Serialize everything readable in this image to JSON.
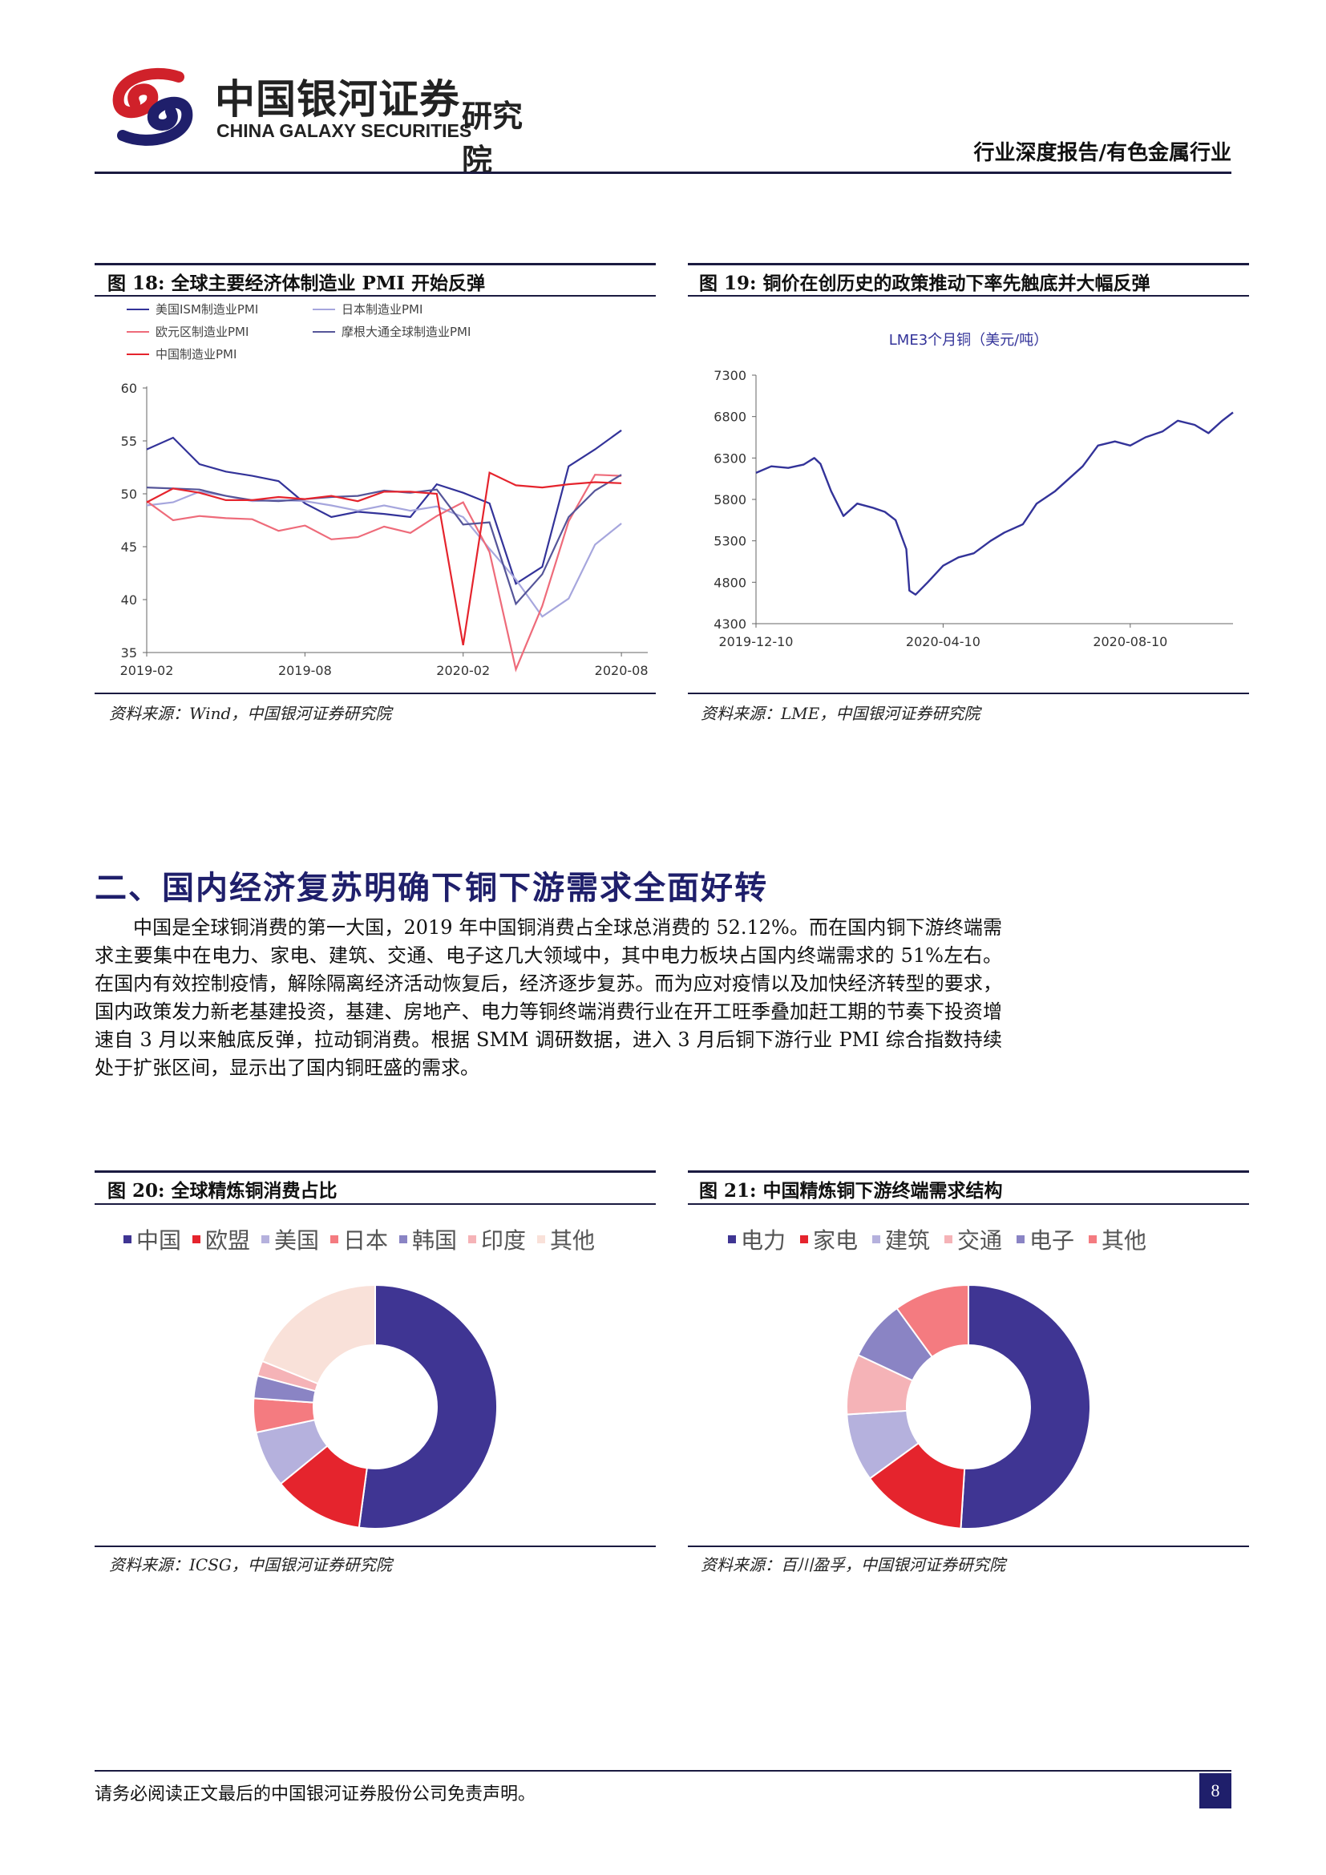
{
  "header": {
    "logo_cn": "中国银河证券",
    "logo_en": "CHINA GALAXY SECURITIES",
    "logo_dept": "研究院",
    "right_label": "行业深度报告/有色金属行业",
    "logo_colors": {
      "red": "#d0212a",
      "navy": "#1f1f6b"
    }
  },
  "figures": {
    "fig18": {
      "title": "图 18:  全球主要经济体制造业 PMI 开始反弹",
      "source": "资料来源：Wind，中国银河证券研究院",
      "chart_data": {
        "type": "line",
        "x_ticks": [
          "2019-02",
          "2019-08",
          "2020-02",
          "2020-08"
        ],
        "ylim": [
          35,
          60
        ],
        "y_ticks": [
          "35",
          "40",
          "45",
          "50",
          "55",
          "60"
        ],
        "x": [
          "2019-02",
          "2019-03",
          "2019-04",
          "2019-05",
          "2019-06",
          "2019-07",
          "2019-08",
          "2019-09",
          "2019-10",
          "2019-11",
          "2019-12",
          "2020-01",
          "2020-02",
          "2020-03",
          "2020-04",
          "2020-05",
          "2020-06",
          "2020-07",
          "2020-08",
          "2020-09"
        ],
        "series": [
          {
            "name": "美国ISM制造业PMI",
            "color": "#333399",
            "values": [
              54.2,
              55.3,
              52.8,
              52.1,
              51.7,
              51.2,
              49.1,
              47.8,
              48.3,
              48.1,
              47.8,
              50.9,
              50.1,
              49.1,
              41.5,
              43.1,
              52.6,
              54.2,
              56.0,
              null
            ]
          },
          {
            "name": "日本制造业PMI",
            "color": "#a6a6dd",
            "values": [
              48.9,
              49.2,
              50.2,
              49.8,
              49.3,
              49.4,
              49.3,
              48.9,
              48.4,
              48.9,
              48.4,
              48.8,
              47.8,
              44.8,
              41.9,
              38.4,
              40.1,
              45.2,
              47.2,
              null
            ]
          },
          {
            "name": "欧元区制造业PMI",
            "color": "#ee6b7a",
            "values": [
              49.3,
              47.5,
              47.9,
              47.7,
              47.6,
              46.5,
              47.0,
              45.7,
              45.9,
              46.9,
              46.3,
              47.9,
              49.2,
              44.5,
              33.4,
              39.4,
              47.4,
              51.8,
              51.7,
              null
            ]
          },
          {
            "name": "摩根大通全球制造业PMI",
            "color": "#555599",
            "values": [
              50.6,
              50.5,
              50.4,
              49.8,
              49.4,
              49.3,
              49.5,
              49.7,
              49.8,
              50.3,
              50.1,
              50.4,
              47.1,
              47.3,
              39.6,
              42.4,
              47.8,
              50.3,
              51.8,
              null
            ]
          },
          {
            "name": "中国制造业PMI",
            "color": "#e5242d",
            "values": [
              49.2,
              50.5,
              50.1,
              49.4,
              49.4,
              49.7,
              49.5,
              49.8,
              49.3,
              50.2,
              50.2,
              50.0,
              35.7,
              52.0,
              50.8,
              50.6,
              50.9,
              51.1,
              51.0,
              null
            ]
          }
        ],
        "legend_position": "top",
        "grid": false
      }
    },
    "fig19": {
      "title": "图 19:  铜价在创历史的政策推动下率先触底并大幅反弹",
      "source": "资料来源：LME，中国银河证券研究院",
      "chart_data": {
        "type": "line",
        "title": "LME3个月铜（美元/吨）",
        "x_ticks": [
          "2019-12-10",
          "2020-04-10",
          "2020-08-10"
        ],
        "ylim": [
          4300,
          7300
        ],
        "y_ticks": [
          "4300",
          "4800",
          "5300",
          "5800",
          "6300",
          "6800",
          "7300"
        ],
        "x": [
          "2019-12-10",
          "2019-12-20",
          "2019-12-31",
          "2020-01-10",
          "2020-01-17",
          "2020-01-21",
          "2020-01-28",
          "2020-02-05",
          "2020-02-14",
          "2020-02-24",
          "2020-03-03",
          "2020-03-10",
          "2020-03-17",
          "2020-03-19",
          "2020-03-23",
          "2020-03-31",
          "2020-04-10",
          "2020-04-20",
          "2020-04-30",
          "2020-05-11",
          "2020-05-20",
          "2020-06-01",
          "2020-06-10",
          "2020-06-22",
          "2020-07-01",
          "2020-07-10",
          "2020-07-20",
          "2020-07-31",
          "2020-08-10",
          "2020-08-20",
          "2020-08-31",
          "2020-09-10",
          "2020-09-21",
          "2020-09-30",
          "2020-10-09",
          "2020-10-16"
        ],
        "series": [
          {
            "name": "LME3个月铜（美元/吨）",
            "color": "#333399",
            "values": [
              6120,
              6200,
              6180,
              6220,
              6300,
              6230,
              5900,
              5600,
              5750,
              5700,
              5650,
              5550,
              5200,
              4700,
              4650,
              4800,
              5000,
              5100,
              5150,
              5300,
              5400,
              5500,
              5750,
              5900,
              6050,
              6200,
              6450,
              6500,
              6450,
              6550,
              6620,
              6750,
              6700,
              6600,
              6750,
              6850
            ]
          }
        ],
        "grid": false
      }
    },
    "fig20": {
      "title": "图 20:  全球精炼铜消费占比",
      "source": "资料来源：ICSG，中国银河证券研究院",
      "chart_data": {
        "type": "pie",
        "donut": true,
        "categories": [
          "中国",
          "欧盟",
          "美国",
          "日本",
          "韩国",
          "印度",
          "其他"
        ],
        "values": [
          52.12,
          12.0,
          7.5,
          4.5,
          3.0,
          2.0,
          18.88
        ],
        "colors": [
          "#3f3593",
          "#e5242d",
          "#b5b1dd",
          "#f47b80",
          "#8a84c4",
          "#f5b3b7",
          "#f9e1d9"
        ],
        "legend_position": "top"
      }
    },
    "fig21": {
      "title": "图 21:  中国精炼铜下游终端需求结构",
      "source": "资料来源：百川盈孚，中国银河证券研究院",
      "chart_data": {
        "type": "pie",
        "donut": true,
        "categories": [
          "电力",
          "家电",
          "建筑",
          "交通",
          "电子",
          "其他"
        ],
        "values": [
          51,
          14,
          9,
          8,
          8,
          10
        ],
        "colors": [
          "#3f3593",
          "#e5242d",
          "#b5b1dd",
          "#f5b3b7",
          "#8a84c4",
          "#f47b80"
        ],
        "legend_position": "top"
      }
    }
  },
  "section": {
    "title": "二、国内经济复苏明确下铜下游需求全面好转",
    "paragraph": "中国是全球铜消费的第一大国，2019 年中国铜消费占全球总消费的 52.12%。而在国内铜下游终端需求主要集中在电力、家电、建筑、交通、电子这几大领域中，其中电力板块占国内终端需求的 51%左右。在国内有效控制疫情，解除隔离经济活动恢复后，经济逐步复苏。而为应对疫情以及加快经济转型的要求，国内政策发力新老基建投资，基建、房地产、电力等铜终端消费行业在开工旺季叠加赶工期的节奏下投资增速自 3 月以来触底反弹，拉动铜消费。根据 SMM 调研数据，进入 3 月后铜下游行业 PMI 综合指数持续处于扩张区间，显示出了国内铜旺盛的需求。"
  },
  "footer": {
    "disclaimer": "请务必阅读正文最后的中国银河证券股份公司免责声明。",
    "page_number": "8"
  }
}
